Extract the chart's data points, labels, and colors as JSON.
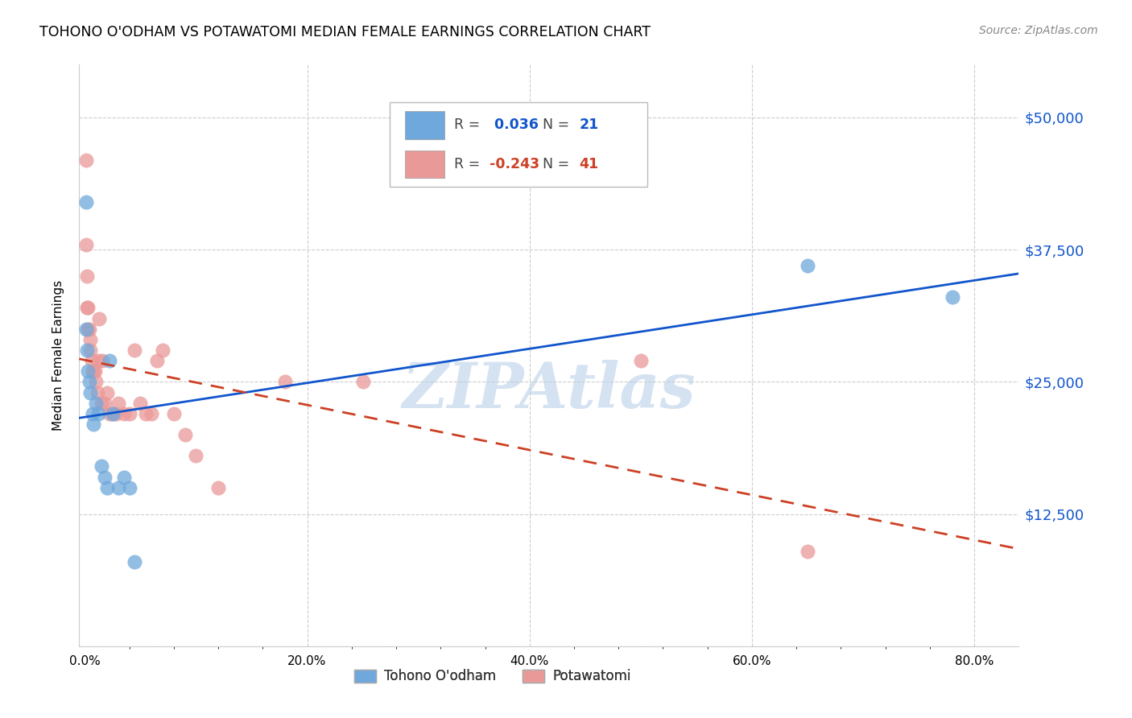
{
  "title": "TOHONO O'ODHAM VS POTAWATOMI MEDIAN FEMALE EARNINGS CORRELATION CHART",
  "source": "Source: ZipAtlas.com",
  "ylabel": "Median Female Earnings",
  "xlabel_ticks": [
    "0.0%",
    "",
    "",
    "",
    "",
    "20.0%",
    "",
    "",
    "",
    "",
    "40.0%",
    "",
    "",
    "",
    "",
    "60.0%",
    "",
    "",
    "",
    "",
    "80.0%"
  ],
  "xlabel_vals": [
    0.0,
    0.04,
    0.08,
    0.12,
    0.16,
    0.2,
    0.24,
    0.28,
    0.32,
    0.36,
    0.4,
    0.44,
    0.48,
    0.52,
    0.56,
    0.6,
    0.64,
    0.68,
    0.72,
    0.76,
    0.8
  ],
  "xlabel_major_ticks": [
    0.0,
    0.2,
    0.4,
    0.6,
    0.8
  ],
  "xlabel_major_labels": [
    "0.0%",
    "20.0%",
    "40.0%",
    "60.0%",
    "80.0%"
  ],
  "ytick_vals": [
    0,
    12500,
    25000,
    37500,
    50000
  ],
  "ytick_labels": [
    "",
    "$12,500",
    "$25,000",
    "$37,500",
    "$50,000"
  ],
  "ymin": 0,
  "ymax": 55000,
  "xmin": -0.005,
  "xmax": 0.84,
  "series1_name": "Tohono O'odham",
  "series1_R": 0.036,
  "series1_N": 21,
  "series1_color": "#6fa8dc",
  "series1_x": [
    0.001,
    0.001,
    0.002,
    0.003,
    0.004,
    0.005,
    0.007,
    0.008,
    0.01,
    0.012,
    0.015,
    0.018,
    0.02,
    0.022,
    0.025,
    0.03,
    0.035,
    0.04,
    0.045,
    0.65,
    0.78
  ],
  "series1_y": [
    42000,
    30000,
    28000,
    26000,
    25000,
    24000,
    22000,
    21000,
    23000,
    22000,
    17000,
    16000,
    15000,
    27000,
    22000,
    15000,
    16000,
    15000,
    8000,
    36000,
    33000
  ],
  "series2_name": "Potawatomi",
  "series2_R": -0.243,
  "series2_N": 41,
  "series2_color": "#ea9999",
  "series2_x": [
    0.001,
    0.001,
    0.002,
    0.002,
    0.003,
    0.003,
    0.004,
    0.005,
    0.005,
    0.006,
    0.007,
    0.008,
    0.009,
    0.01,
    0.011,
    0.012,
    0.013,
    0.015,
    0.016,
    0.018,
    0.02,
    0.022,
    0.025,
    0.028,
    0.03,
    0.035,
    0.04,
    0.045,
    0.05,
    0.055,
    0.06,
    0.065,
    0.07,
    0.08,
    0.09,
    0.1,
    0.12,
    0.18,
    0.25,
    0.5,
    0.65
  ],
  "series2_y": [
    46000,
    38000,
    35000,
    32000,
    32000,
    30000,
    30000,
    29000,
    28000,
    27000,
    26000,
    26000,
    26000,
    25000,
    24000,
    27000,
    31000,
    23000,
    27000,
    23000,
    24000,
    22000,
    22000,
    22000,
    23000,
    22000,
    22000,
    28000,
    23000,
    22000,
    22000,
    27000,
    28000,
    22000,
    20000,
    18000,
    15000,
    25000,
    25000,
    27000,
    9000
  ],
  "trend1_color": "#1155cc",
  "trend2_color": "#cc4125",
  "background_color": "#ffffff",
  "grid_color": "#cccccc",
  "watermark": "ZIPAtlas",
  "watermark_color": "#b8d0e8",
  "title_color": "#000000",
  "axis_label_color": "#000000",
  "ytick_color": "#1155cc",
  "xtick_color": "#000000"
}
